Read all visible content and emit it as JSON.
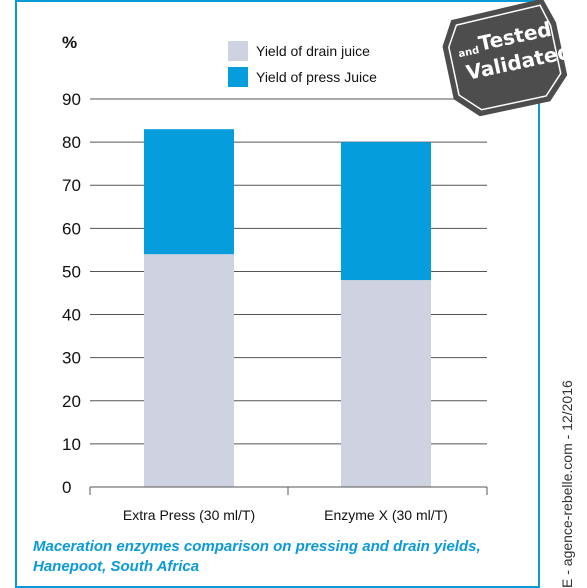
{
  "badge": {
    "and": "and",
    "tested": "Tested",
    "validated": "Validated"
  },
  "side_text": "E - agence-rebelle.com - 12/2016",
  "caption": {
    "line1": "Maceration enzymes comparison on pressing and drain yields,",
    "line2": "Hanepoot, South Africa"
  },
  "colors": {
    "drain": "#cfd2e0",
    "press": "#069ddc",
    "frame": "#0a9ad8",
    "badge": "#4d4d4d"
  },
  "chart_data": {
    "type": "bar",
    "stacked": true,
    "unit_label": "%",
    "categories": [
      "Extra Press (30 ml/T)",
      "Enzyme X (30 ml/T)"
    ],
    "series": [
      {
        "name": "Yield of drain juice",
        "values": [
          54,
          48
        ]
      },
      {
        "name": "Yield of press Juice",
        "values": [
          29,
          32
        ]
      }
    ],
    "ylim": [
      0,
      90
    ],
    "yticks": [
      0,
      10,
      20,
      30,
      40,
      50,
      60,
      70,
      80,
      90
    ],
    "grid": true,
    "legend_position": "top-center"
  }
}
